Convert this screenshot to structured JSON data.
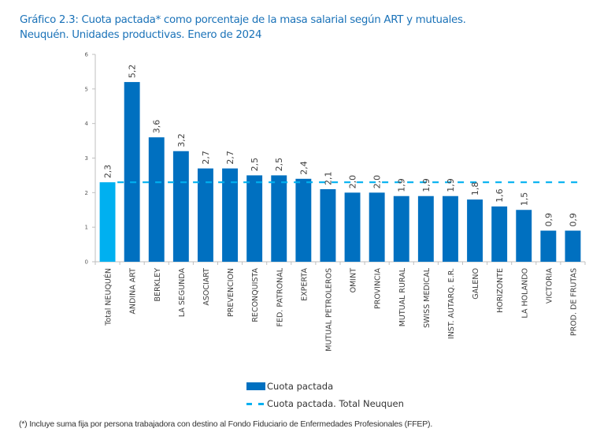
{
  "title": {
    "line1": "Gráfico 2.3: Cuota pactada* como porcentaje de la masa salarial según ART y mutuales.",
    "line2": "Neuquén. Unidades productivas. Enero de 2024"
  },
  "colors": {
    "bar": "#0070c0",
    "total_bar": "#00b0f0",
    "reference_line": "#00b0f0",
    "axis": "#bfbfbf",
    "title": "#1a72b8"
  },
  "chart_data": {
    "type": "bar",
    "title": "Gráfico 2.3: Cuota pactada* como porcentaje de la masa salarial según ART y mutuales. Neuquén. Unidades productivas. Enero de 2024",
    "xlabel": "",
    "ylabel": "",
    "ylim": [
      0,
      6
    ],
    "yticks": [
      "0",
      "1",
      "2",
      "3",
      "4",
      "5",
      "6"
    ],
    "grid": false,
    "categories": [
      "Total NEUQUÉN",
      "ANDINA ART",
      "BERKLEY",
      "LA SEGUNDA",
      "ASOCIART",
      "PREVENCION",
      "RECONQUISTA",
      "FED. PATRONAL",
      "EXPERTA",
      "MUTUAL PETROLEROS",
      "OMINT",
      "PROVINCIA",
      "MUTUAL RURAL",
      "SWISS MEDICAL",
      "INST. AUTARQ. E.R.",
      "GALENO",
      "HORIZONTE",
      "LA HOLANDO",
      "VICTORIA",
      "PROD. DE FRUTAS"
    ],
    "series": [
      {
        "name": "Cuota pactada",
        "values": [
          2.3,
          5.2,
          3.6,
          3.2,
          2.7,
          2.7,
          2.5,
          2.5,
          2.4,
          2.1,
          2.0,
          2.0,
          1.9,
          1.9,
          1.9,
          1.8,
          1.6,
          1.5,
          0.9,
          0.9
        ],
        "labels": [
          "2,3",
          "5,2",
          "3,6",
          "3,2",
          "2,7",
          "2,7",
          "2,5",
          "2,5",
          "2,4",
          "2,1",
          "2,0",
          "2,0",
          "1,9",
          "1,9",
          "1,9",
          "1,8",
          "1,6",
          "1,5",
          "0,9",
          "0,9"
        ]
      },
      {
        "name": "Cuota pactada. Total Neuquen",
        "type": "dashed-line",
        "value": 2.3
      }
    ],
    "legend": {
      "position": "bottom-center",
      "items": [
        "Cuota pactada",
        "Cuota pactada. Total Neuquen"
      ]
    }
  },
  "footnote": "(*) Incluye suma fija por persona trabajadora con destino al Fondo Fiduciario de Enfermedades Profesionales (FFEP)."
}
